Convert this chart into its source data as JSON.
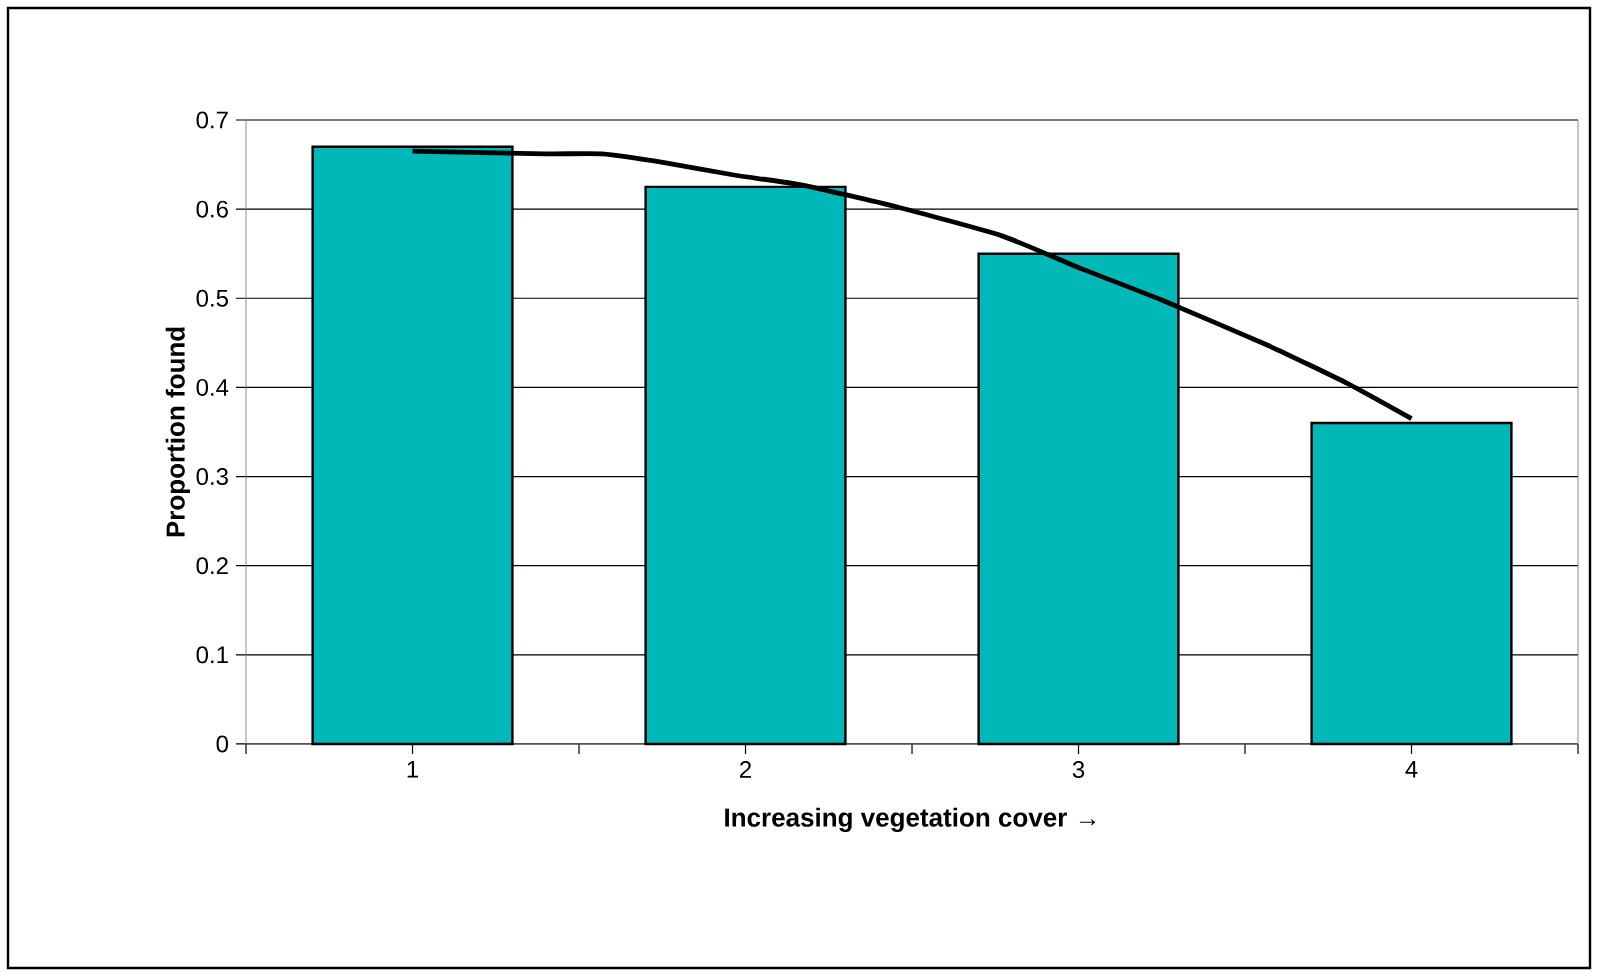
{
  "chart_data": {
    "type": "bar",
    "xlabel": "Increasing vegetation cover →",
    "ylabel": "Proportion found",
    "x": [
      1,
      2,
      3,
      4
    ],
    "xlim": [
      0.5,
      4.5
    ],
    "xticks": [
      {
        "value": 0.5,
        "label": null
      },
      1,
      {
        "value": 1.5,
        "label": null
      },
      2,
      {
        "value": 2.5,
        "label": null
      },
      3,
      {
        "value": 3.5,
        "label": null
      },
      4,
      {
        "value": 4.5,
        "label": null
      }
    ],
    "ylim": [
      0,
      0.7
    ],
    "yticks": [
      0,
      0.1,
      0.2,
      0.3,
      0.4,
      0.5,
      0.6,
      0.7
    ],
    "grid": "y",
    "series": [
      {
        "color": "#00b8b8",
        "values": [
          0.67,
          0.625,
          0.55,
          0.36
        ]
      },
      {
        "type": "line",
        "color": "#000000",
        "line_style": "solid",
        "marker": "none",
        "x": [
          1.0,
          1.4,
          1.57,
          1.76,
          1.97,
          2.17,
          2.45,
          2.77,
          3.01,
          3.25,
          3.57,
          3.81,
          4.0
        ],
        "values": [
          0.665,
          0.662,
          0.662,
          0.652,
          0.638,
          0.627,
          0.603,
          0.57,
          0.533,
          0.498,
          0.447,
          0.404,
          0.365
        ]
      }
    ]
  }
}
